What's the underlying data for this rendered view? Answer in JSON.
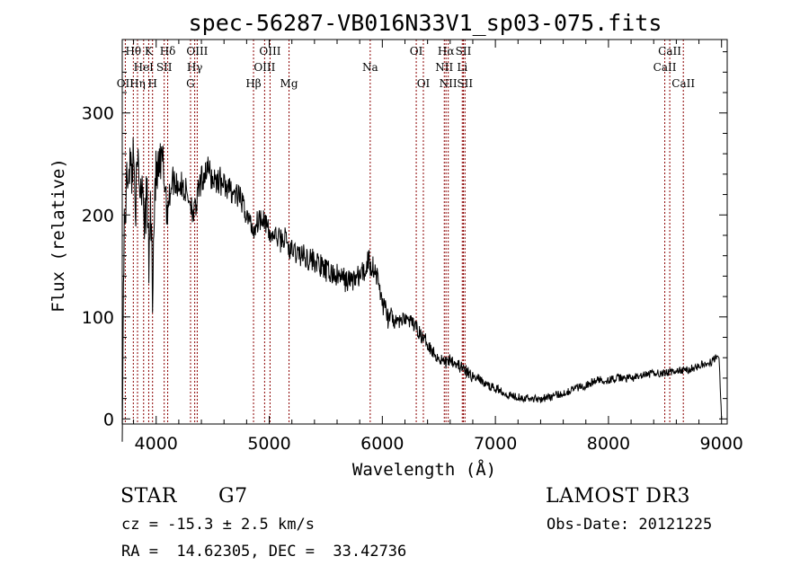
{
  "chart_data": {
    "type": "line",
    "title": "spec-56287-VB016N33V1_sp03-075.fits",
    "xlabel": "Wavelength (Å)",
    "ylabel": "Flux (relative)",
    "xlim": [
      3700,
      9050
    ],
    "ylim": [
      -5,
      372
    ],
    "xticks": [
      4000,
      5000,
      6000,
      7000,
      8000,
      9000
    ],
    "yticks": [
      0,
      100,
      200,
      300
    ],
    "xtick_labels": [
      "4000",
      "5000",
      "6000",
      "7000",
      "8000",
      "9000"
    ],
    "ytick_labels": [
      "0",
      "100",
      "200",
      "300"
    ],
    "line_color": "#000000",
    "marker_color": "#8b0000",
    "spectrum_anchors": [
      [
        3700,
        5
      ],
      [
        3705,
        30
      ],
      [
        3710,
        140
      ],
      [
        3720,
        190
      ],
      [
        3740,
        230
      ],
      [
        3760,
        255
      ],
      [
        3780,
        240
      ],
      [
        3800,
        260
      ],
      [
        3820,
        215
      ],
      [
        3840,
        250
      ],
      [
        3860,
        225
      ],
      [
        3880,
        240
      ],
      [
        3900,
        190
      ],
      [
        3920,
        225
      ],
      [
        3935,
        150
      ],
      [
        3950,
        210
      ],
      [
        3968,
        130
      ],
      [
        3990,
        235
      ],
      [
        4020,
        240
      ],
      [
        4060,
        250
      ],
      [
        4101,
        205
      ],
      [
        4140,
        235
      ],
      [
        4200,
        230
      ],
      [
        4250,
        225
      ],
      [
        4300,
        215
      ],
      [
        4340,
        200
      ],
      [
        4380,
        225
      ],
      [
        4420,
        240
      ],
      [
        4450,
        245
      ],
      [
        4500,
        235
      ],
      [
        4550,
        235
      ],
      [
        4600,
        230
      ],
      [
        4650,
        225
      ],
      [
        4700,
        220
      ],
      [
        4750,
        215
      ],
      [
        4800,
        200
      ],
      [
        4861,
        185
      ],
      [
        4900,
        195
      ],
      [
        4950,
        200
      ],
      [
        5000,
        180
      ],
      [
        5050,
        180
      ],
      [
        5100,
        175
      ],
      [
        5150,
        178
      ],
      [
        5175,
        165
      ],
      [
        5200,
        165
      ],
      [
        5300,
        160
      ],
      [
        5400,
        155
      ],
      [
        5500,
        145
      ],
      [
        5600,
        140
      ],
      [
        5700,
        135
      ],
      [
        5800,
        140
      ],
      [
        5850,
        145
      ],
      [
        5880,
        160
      ],
      [
        5893,
        150
      ],
      [
        5920,
        150
      ],
      [
        5950,
        140
      ],
      [
        6000,
        115
      ],
      [
        6050,
        100
      ],
      [
        6100,
        95
      ],
      [
        6150,
        95
      ],
      [
        6200,
        100
      ],
      [
        6250,
        95
      ],
      [
        6300,
        90
      ],
      [
        6350,
        80
      ],
      [
        6400,
        75
      ],
      [
        6450,
        65
      ],
      [
        6500,
        60
      ],
      [
        6563,
        55
      ],
      [
        6600,
        60
      ],
      [
        6650,
        55
      ],
      [
        6700,
        50
      ],
      [
        6750,
        45
      ],
      [
        6800,
        42
      ],
      [
        6850,
        40
      ],
      [
        6900,
        35
      ],
      [
        6950,
        32
      ],
      [
        7000,
        30
      ],
      [
        7050,
        28
      ],
      [
        7100,
        24
      ],
      [
        7200,
        22
      ],
      [
        7300,
        20
      ],
      [
        7400,
        20
      ],
      [
        7500,
        22
      ],
      [
        7600,
        25
      ],
      [
        7700,
        30
      ],
      [
        7800,
        33
      ],
      [
        7900,
        38
      ],
      [
        8000,
        38
      ],
      [
        8100,
        40
      ],
      [
        8200,
        40
      ],
      [
        8300,
        42
      ],
      [
        8400,
        45
      ],
      [
        8500,
        45
      ],
      [
        8600,
        47
      ],
      [
        8700,
        48
      ],
      [
        8800,
        52
      ],
      [
        8900,
        55
      ],
      [
        8950,
        60
      ],
      [
        8980,
        58
      ],
      [
        9000,
        0
      ]
    ],
    "line_markers": [
      {
        "wavelength": 3727,
        "label": "OII",
        "row": 3
      },
      {
        "wavelength": 3798,
        "label": "Hθ",
        "row": 1
      },
      {
        "wavelength": 3835,
        "label": "Hη",
        "row": 3
      },
      {
        "wavelength": 3889,
        "label": "HeI",
        "row": 2
      },
      {
        "wavelength": 3934,
        "label": "K",
        "row": 1
      },
      {
        "wavelength": 3968,
        "label": "H",
        "row": 3
      },
      {
        "wavelength": 4071,
        "label": "SII",
        "row": 2
      },
      {
        "wavelength": 4102,
        "label": "Hδ",
        "row": 1
      },
      {
        "wavelength": 4304,
        "label": "G",
        "row": 3
      },
      {
        "wavelength": 4341,
        "label": "Hγ",
        "row": 2
      },
      {
        "wavelength": 4363,
        "label": "OIII",
        "row": 1
      },
      {
        "wavelength": 4861,
        "label": "Hβ",
        "row": 3
      },
      {
        "wavelength": 4959,
        "label": "OIII",
        "row": 2
      },
      {
        "wavelength": 5007,
        "label": "OIII",
        "row": 1
      },
      {
        "wavelength": 5175,
        "label": "Mg",
        "row": 3
      },
      {
        "wavelength": 5893,
        "label": "Na",
        "row": 2
      },
      {
        "wavelength": 6300,
        "label": "OI",
        "row": 1
      },
      {
        "wavelength": 6363,
        "label": "OI",
        "row": 3
      },
      {
        "wavelength": 6548,
        "label": "NII",
        "row": 2
      },
      {
        "wavelength": 6563,
        "label": "Hα",
        "row": 1
      },
      {
        "wavelength": 6583,
        "label": "NII",
        "row": 3
      },
      {
        "wavelength": 6707,
        "label": "Li",
        "row": 2
      },
      {
        "wavelength": 6717,
        "label": "SII",
        "row": 1
      },
      {
        "wavelength": 6731,
        "label": "SII",
        "row": 3
      },
      {
        "wavelength": 8498,
        "label": "CaII",
        "row": 2
      },
      {
        "wavelength": 8542,
        "label": "CaII",
        "row": 1
      },
      {
        "wavelength": 8662,
        "label": "CaII",
        "row": 3
      }
    ]
  },
  "info": {
    "object_class": "STAR",
    "subclass": "G7",
    "survey": "LAMOST DR3",
    "redshift_line": "cz = -15.3 ± 2.5 km/s",
    "obs_date_line": "Obs-Date: 20121225",
    "coords_line": "RA =  14.62305, DEC =  33.42736"
  }
}
